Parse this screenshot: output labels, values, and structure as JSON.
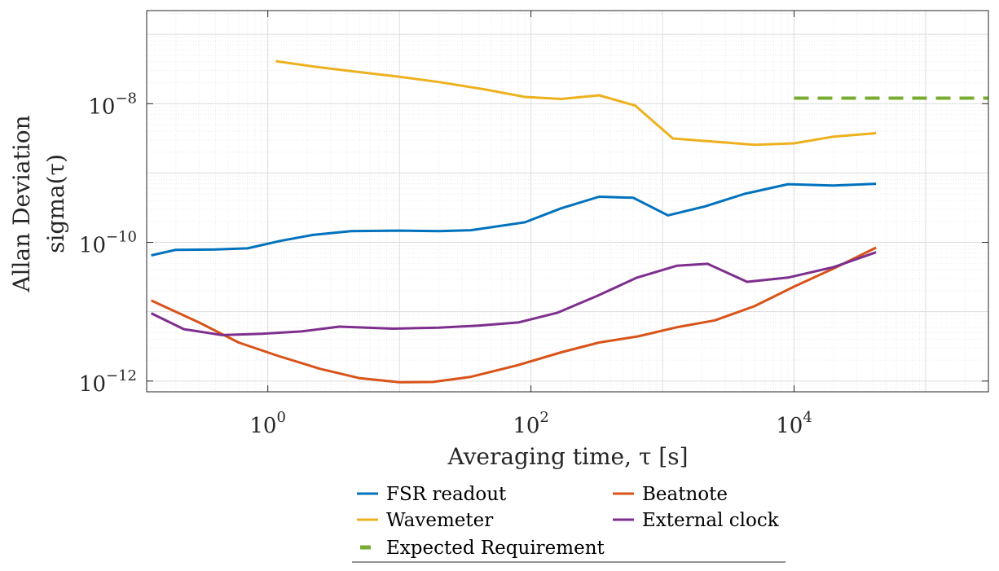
{
  "chart_data": {
    "type": "line",
    "xscale": "log",
    "yscale": "log",
    "xlim": [
      0.12,
      300000
    ],
    "ylim": [
      7e-13,
      2.2e-07
    ],
    "xlabel": "Averaging time, τ [s]",
    "ylabel_line1": "Allan Deviation",
    "ylabel_line2": "sigma(τ)",
    "x_ticks": [
      {
        "value": 1,
        "base": "10",
        "exp": "0"
      },
      {
        "value": 100,
        "base": "10",
        "exp": "2"
      },
      {
        "value": 10000,
        "base": "10",
        "exp": "4"
      }
    ],
    "y_ticks": [
      {
        "value": 1e-08,
        "base": "10",
        "exp": "−8"
      },
      {
        "value": 1e-10,
        "base": "10",
        "exp": "−10"
      },
      {
        "value": 1e-12,
        "base": "10",
        "exp": "−12"
      }
    ],
    "grid": true,
    "legend_position": "bottom",
    "series": [
      {
        "name": "FSR readout",
        "color": "#0072BD",
        "style": "solid",
        "x": [
          0.13,
          0.2,
          0.4,
          0.7,
          1.25,
          2.2,
          4.3,
          10,
          20,
          35,
          90,
          170,
          330,
          600,
          1100,
          2100,
          4200,
          9000,
          20000,
          42000
        ],
        "y": [
          6.5e-11,
          7.8e-11,
          7.9e-11,
          8.2e-11,
          1.05e-10,
          1.28e-10,
          1.45e-10,
          1.48e-10,
          1.45e-10,
          1.5e-10,
          1.95e-10,
          3.1e-10,
          4.55e-10,
          4.4e-10,
          2.45e-10,
          3.3e-10,
          5e-10,
          6.9e-10,
          6.6e-10,
          7e-10
        ]
      },
      {
        "name": "Beatnote",
        "color": "#D95319",
        "style": "solid",
        "x": [
          0.13,
          0.3,
          0.6,
          1.2,
          2.5,
          5,
          10,
          18,
          35,
          80,
          170,
          330,
          650,
          1300,
          2500,
          5000,
          10000,
          20000,
          42000
        ],
        "y": [
          1.45e-11,
          7e-12,
          3.6e-12,
          2.3e-12,
          1.5e-12,
          1.1e-12,
          9.6e-13,
          9.7e-13,
          1.15e-12,
          1.7e-12,
          2.6e-12,
          3.6e-12,
          4.4e-12,
          6e-12,
          7.5e-12,
          1.2e-11,
          2.3e-11,
          4.2e-11,
          8.4e-11
        ]
      },
      {
        "name": "Wavemeter",
        "color": "#EDB120",
        "style": "solid",
        "x": [
          1.15,
          2.3,
          4.6,
          10,
          20,
          45,
          90,
          170,
          330,
          620,
          1200,
          2400,
          5000,
          10000,
          20000,
          42000
        ],
        "y": [
          4.1e-08,
          3.4e-08,
          2.9e-08,
          2.45e-08,
          2.05e-08,
          1.6e-08,
          1.25e-08,
          1.17e-08,
          1.32e-08,
          9.4e-09,
          3.15e-09,
          2.85e-09,
          2.55e-09,
          2.68e-09,
          3.35e-09,
          3.75e-09
        ]
      },
      {
        "name": "External clock",
        "color": "#7E2F8E",
        "style": "solid",
        "x": [
          0.13,
          0.23,
          0.45,
          0.9,
          1.8,
          3.5,
          9,
          20,
          40,
          80,
          160,
          320,
          640,
          1280,
          2200,
          4400,
          9000,
          20000,
          42000
        ],
        "y": [
          9.5e-12,
          5.6e-12,
          4.6e-12,
          4.8e-12,
          5.2e-12,
          6.1e-12,
          5.7e-12,
          5.9e-12,
          6.3e-12,
          7e-12,
          9.7e-12,
          1.7e-11,
          3.1e-11,
          4.6e-11,
          4.9e-11,
          2.7e-11,
          3.1e-11,
          4.4e-11,
          7.2e-11
        ]
      },
      {
        "name": "Expected Requirement",
        "color": "#77AC30",
        "style": "dashed",
        "x": [
          10000,
          300000
        ],
        "y": [
          1.2e-08,
          1.2e-08
        ]
      }
    ],
    "legend_order": [
      "FSR readout",
      "Beatnote",
      "Wavemeter",
      "External clock",
      "Expected Requirement"
    ]
  }
}
